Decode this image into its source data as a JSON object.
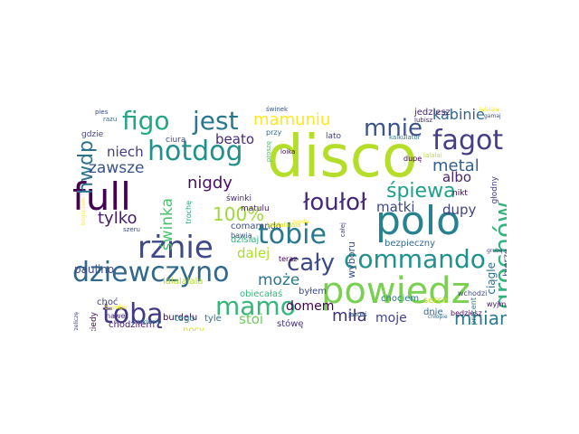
{
  "words": [
    {
      "text": "disco",
      "weight": 1.0,
      "color": "#b5de2b"
    },
    {
      "text": "powiedz",
      "weight": 0.72,
      "color": "#7ad151"
    },
    {
      "text": "polo",
      "weight": 0.7,
      "color": "#26828e"
    },
    {
      "text": "full",
      "weight": 0.68,
      "color": "#440154"
    },
    {
      "text": "rżnie",
      "weight": 0.6,
      "color": "#3e4989"
    },
    {
      "text": "dziewczyno",
      "weight": 0.58,
      "color": "#31688e"
    },
    {
      "text": "tobie",
      "weight": 0.55,
      "color": "#2a788e"
    },
    {
      "text": "fagot",
      "weight": 0.52,
      "color": "#433e85"
    },
    {
      "text": "commando",
      "weight": 0.52,
      "color": "#21918c"
    },
    {
      "text": "hotdog",
      "weight": 0.5,
      "color": "#21918c"
    },
    {
      "text": "figo",
      "weight": 0.5,
      "color": "#22a884"
    },
    {
      "text": "jest",
      "weight": 0.48,
      "color": "#2a788e"
    },
    {
      "text": "tobą",
      "weight": 0.48,
      "color": "#443983"
    },
    {
      "text": "mamo",
      "weight": 0.48,
      "color": "#35b779"
    },
    {
      "text": "mnie",
      "weight": 0.46,
      "color": "#3b528b"
    },
    {
      "text": "grochów",
      "weight": 0.45,
      "color": "#2fb47c"
    },
    {
      "text": "łoułoł",
      "weight": 0.42,
      "color": "#482878"
    },
    {
      "text": "cały",
      "weight": 0.4,
      "color": "#3e4989"
    },
    {
      "text": "hwdp",
      "weight": 0.38,
      "color": "#2c728e"
    },
    {
      "text": "śpiewa",
      "weight": 0.36,
      "color": "#1fa188"
    },
    {
      "text": "mniam",
      "weight": 0.36,
      "color": "#287c8e"
    },
    {
      "text": "mamuniu",
      "weight": 0.32,
      "color": "#fde725"
    },
    {
      "text": "100%",
      "weight": 0.32,
      "color": "#a0da39"
    },
    {
      "text": "nigdy",
      "weight": 0.32,
      "color": "#471063"
    },
    {
      "text": "kabinie",
      "weight": 0.28,
      "color": "#31688e"
    },
    {
      "text": "metal",
      "weight": 0.28,
      "color": "#35608d"
    },
    {
      "text": "tylko",
      "weight": 0.28,
      "color": "#481b6d"
    },
    {
      "text": "miła",
      "weight": 0.28,
      "color": "#46327e"
    },
    {
      "text": "zawsze",
      "weight": 0.26,
      "color": "#3b528b"
    },
    {
      "text": "może",
      "weight": 0.26,
      "color": "#2a788e"
    },
    {
      "text": "świnka",
      "weight": 0.26,
      "color": "#4ac16d"
    },
    {
      "text": "matki",
      "weight": 0.24,
      "color": "#3e4989"
    },
    {
      "text": "dupy",
      "weight": 0.24,
      "color": "#414487"
    },
    {
      "text": "albo",
      "weight": 0.24,
      "color": "#482475"
    },
    {
      "text": "niech",
      "weight": 0.24,
      "color": "#443983"
    },
    {
      "text": "beato",
      "weight": 0.24,
      "color": "#482878"
    },
    {
      "text": "stoi",
      "weight": 0.24,
      "color": "#6ece58"
    },
    {
      "text": "dalej",
      "weight": 0.24,
      "color": "#addc30"
    },
    {
      "text": "moje",
      "weight": 0.22,
      "color": "#404688"
    },
    {
      "text": "domem",
      "weight": 0.22,
      "color": "#440154"
    },
    {
      "text": "paulino",
      "weight": 0.2,
      "color": "#3e4989"
    },
    {
      "text": "ciągle",
      "weight": 0.2,
      "color": "#2e6f8e"
    },
    {
      "text": "wyboru",
      "weight": 0.18,
      "color": "#3b528b"
    },
    {
      "text": "bierze",
      "weight": 0.18,
      "color": "#3e4989"
    },
    {
      "text": "bezpieczny",
      "weight": 0.17,
      "color": "#31688e"
    },
    {
      "text": "burdelu",
      "weight": 0.17,
      "color": "#440154"
    },
    {
      "text": "nocy",
      "weight": 0.17,
      "color": "#d8e219"
    },
    {
      "text": "tyle",
      "weight": 0.17,
      "color": "#2c728e"
    },
    {
      "text": "chodziłem",
      "weight": 0.17,
      "color": "#481b6d"
    },
    {
      "text": "dzisiaj",
      "weight": 0.16,
      "color": "#2fb47c"
    },
    {
      "text": "comamndo",
      "weight": 0.16,
      "color": "#3b528b"
    },
    {
      "text": "chociem",
      "weight": 0.16,
      "color": "#2a788e"
    },
    {
      "text": "obiecałaś",
      "weight": 0.16,
      "color": "#35b779"
    },
    {
      "text": "jedziesz",
      "weight": 0.16,
      "color": "#482475"
    },
    {
      "text": "choć",
      "weight": 0.16,
      "color": "#433e85"
    },
    {
      "text": "lalalalala",
      "weight": 0.15,
      "color": "#b5de2b"
    },
    {
      "text": "stówę",
      "weight": 0.15,
      "color": "#46327e"
    },
    {
      "text": "tego",
      "weight": 0.15,
      "color": "#2a788e"
    },
    {
      "text": "dnie",
      "weight": 0.15,
      "color": "#31688e"
    },
    {
      "text": "byłem",
      "weight": 0.15,
      "color": "#3e4989"
    },
    {
      "text": "serce",
      "weight": 0.15,
      "color": "#bddf26"
    },
    {
      "text": "matulu",
      "weight": 0.14,
      "color": "#481b6d"
    },
    {
      "text": "świnki",
      "weight": 0.14,
      "color": "#482878"
    },
    {
      "text": "ciura",
      "weight": 0.14,
      "color": "#3e4989"
    },
    {
      "text": "nikt",
      "weight": 0.14,
      "color": "#440154"
    },
    {
      "text": "lato",
      "weight": 0.14,
      "color": "#414487"
    },
    {
      "text": "gdzie",
      "weight": 0.14,
      "color": "#433e85"
    },
    {
      "text": "głodny",
      "weight": 0.13,
      "color": "#443983"
    },
    {
      "text": "kiedy",
      "weight": 0.13,
      "color": "#46085c"
    },
    {
      "text": "trochę",
      "weight": 0.12,
      "color": "#22a884"
    },
    {
      "text": "przy",
      "weight": 0.12,
      "color": "#31688e"
    },
    {
      "text": "bawią",
      "weight": 0.11,
      "color": "#3b528b"
    },
    {
      "text": "teraz",
      "weight": 0.11,
      "color": "#440154"
    },
    {
      "text": "wchodzi",
      "weight": 0.11,
      "color": "#3e4989"
    },
    {
      "text": "będziesz",
      "weight": 0.11,
      "color": "#46085c"
    },
    {
      "text": "procent",
      "weight": 0.11,
      "color": "#2a788e"
    },
    {
      "text": "wyjmij",
      "weight": 0.11,
      "color": "#471063"
    },
    {
      "text": "nawet",
      "weight": 0.1,
      "color": "#482878"
    },
    {
      "text": "dupę",
      "weight": 0.1,
      "color": "#440154"
    },
    {
      "text": "kalkulator",
      "weight": 0.1,
      "color": "#2a788e"
    },
    {
      "text": "jesteś",
      "weight": 0.1,
      "color": "#35608d"
    },
    {
      "text": "parkiecie",
      "weight": 0.1,
      "color": "#31688e"
    },
    {
      "text": "lalalalalala",
      "weight": 0.1,
      "color": "#d8e219"
    },
    {
      "text": "całej",
      "weight": 0.1,
      "color": "#3e4989"
    },
    {
      "text": "proszę",
      "weight": 0.1,
      "color": "#4ac16d"
    },
    {
      "text": "lalalai",
      "weight": 0.1,
      "color": "#bddf26"
    },
    {
      "text": "świnek",
      "weight": 0.1,
      "color": "#3b528b"
    },
    {
      "text": "lubisz",
      "weight": 0.1,
      "color": "#482878"
    },
    {
      "text": "pies",
      "weight": 0.1,
      "color": "#3e4989"
    },
    {
      "text": "razu",
      "weight": 0.1,
      "color": "#31688e"
    },
    {
      "text": "loika",
      "weight": 0.1,
      "color": "#440154"
    },
    {
      "text": "szeru",
      "weight": 0.1,
      "color": "#3e4989"
    },
    {
      "text": "bomba",
      "weight": 0.1,
      "color": "#fde725"
    },
    {
      "text": "przeliczę",
      "weight": 0.1,
      "color": "#3e4989"
    },
    {
      "text": "bogaczem",
      "weight": 0.1,
      "color": "#fde725"
    },
    {
      "text": "grubą",
      "weight": 0.1,
      "color": "#433e85"
    },
    {
      "text": "chłopie",
      "weight": 0.1,
      "color": "#31688e"
    },
    {
      "text": "zgoda",
      "weight": 0.1,
      "color": "#fde725"
    },
    {
      "text": "lalalaia",
      "weight": 0.1,
      "color": "#fde725"
    },
    {
      "text": "gamaj",
      "weight": 0.1,
      "color": "#3b528b"
    }
  ]
}
